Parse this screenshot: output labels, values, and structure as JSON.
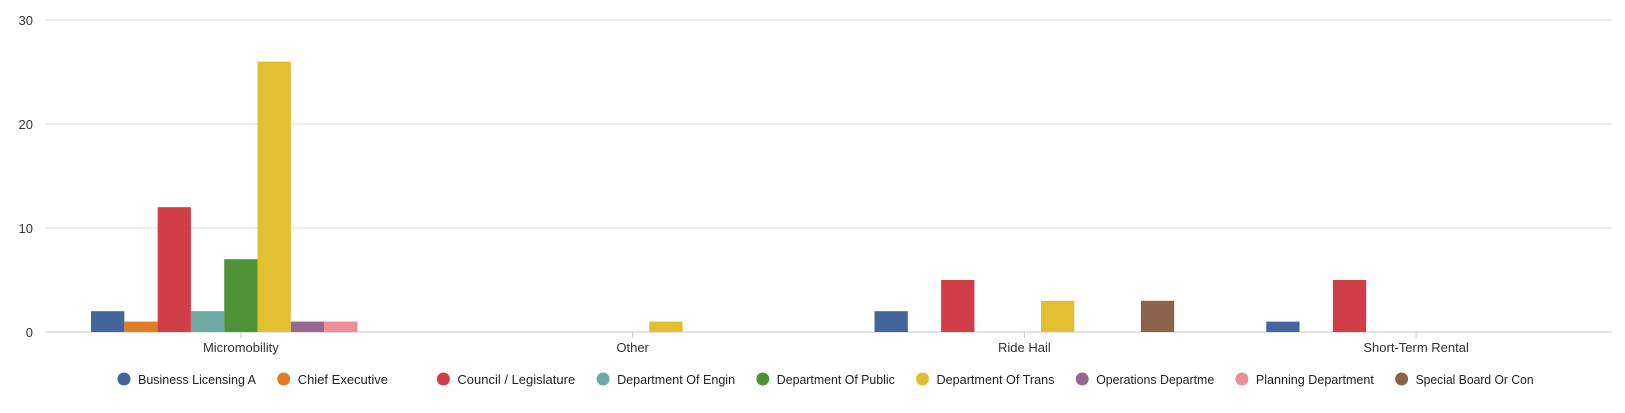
{
  "chart_data": {
    "type": "bar",
    "title": "",
    "xlabel": "",
    "ylabel": "",
    "ylim": [
      0,
      30
    ],
    "yticks": [
      0,
      10,
      20,
      30
    ],
    "grid": true,
    "legend_position": "bottom",
    "categories": [
      "Micromobility",
      "Other",
      "Ride Hail",
      "Short-Term Rental"
    ],
    "series": [
      {
        "name": "Business Licensing A",
        "color": "#44659B",
        "values": [
          2,
          0,
          2,
          1
        ]
      },
      {
        "name": "Chief Executive",
        "color": "#E27B26",
        "values": [
          1,
          0,
          0,
          0
        ]
      },
      {
        "name": "Council / Legislature",
        "color": "#D03F47",
        "values": [
          12,
          0,
          5,
          5
        ]
      },
      {
        "name": "Department Of Engin",
        "color": "#6EAAA6",
        "values": [
          2,
          0,
          0,
          0
        ]
      },
      {
        "name": "Department Of Public",
        "color": "#4E9436",
        "values": [
          7,
          0,
          0,
          0
        ]
      },
      {
        "name": "Department Of Trans",
        "color": "#E2BF30",
        "values": [
          26,
          1,
          3,
          0
        ]
      },
      {
        "name": "Operations Departme",
        "color": "#996794",
        "values": [
          1,
          0,
          0,
          0
        ]
      },
      {
        "name": "Planning Department",
        "color": "#EE8C98",
        "values": [
          1,
          0,
          0,
          0
        ]
      },
      {
        "name": "Special Board Or Con",
        "color": "#8B634D",
        "values": [
          0,
          0,
          3,
          0
        ]
      }
    ]
  }
}
